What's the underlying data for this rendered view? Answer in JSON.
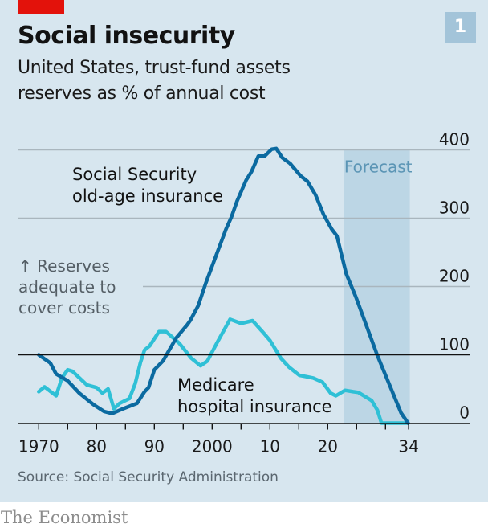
{
  "header": {
    "title": "Social insecurity",
    "subtitle_line1": "United States, trust-fund assets",
    "subtitle_line2": "reserves as % of annual cost",
    "chart_number": "1"
  },
  "footer": {
    "source": "Source: Social Security Administration",
    "brand": "The Economist"
  },
  "colors": {
    "background": "#d7e6ef",
    "social_security": "#0b6aa0",
    "medicare": "#2fc0d6",
    "forecast_band": "#bcd6e5",
    "accent_red": "#e3120b",
    "gridline": "#a9b6be"
  },
  "chart_data": {
    "type": "line",
    "title": "Social insecurity",
    "subtitle": "United States, trust-fund assets reserves as % of annual cost",
    "xlabel": "",
    "ylabel": "",
    "xlim": [
      1970,
      2034
    ],
    "ylim": [
      0,
      400
    ],
    "y_ticks": [
      0,
      100,
      200,
      300,
      400
    ],
    "y_tick_labels": [
      "0",
      "100",
      "200",
      "300",
      "400"
    ],
    "x_ticks": [
      1970,
      1975,
      1980,
      1985,
      1990,
      1995,
      2000,
      2005,
      2010,
      2015,
      2020,
      2025,
      2030,
      2034
    ],
    "x_tick_labels": [
      {
        "year": 1970,
        "label": "1970"
      },
      {
        "year": 1980,
        "label": "80"
      },
      {
        "year": 1990,
        "label": "90"
      },
      {
        "year": 2000,
        "label": "2000"
      },
      {
        "year": 2010,
        "label": "10"
      },
      {
        "year": 2020,
        "label": "20"
      },
      {
        "year": 2034,
        "label": "34"
      }
    ],
    "grid": true,
    "reference_line": {
      "value": 100,
      "note": "Reserves adequate to cover costs"
    },
    "forecast": {
      "from": 2023,
      "to": 2034,
      "label": "Forecast"
    },
    "annotations": [
      {
        "text_lines": [
          "Social Security",
          "old-age insurance"
        ],
        "series": "Social Security old-age insurance"
      },
      {
        "text_lines": [
          "Medicare",
          "hospital insurance"
        ],
        "series": "Medicare hospital insurance"
      },
      {
        "text_lines": [
          "↑ Reserves",
          "adequate to",
          "cover costs"
        ],
        "series": null
      }
    ],
    "series": [
      {
        "name": "Social Security old-age insurance",
        "color": "#0b6aa0",
        "x": [
          1970,
          1972,
          1973,
          1975,
          1977,
          1979.5,
          1981.3,
          1982.7,
          1984.6,
          1987,
          1988.3,
          1989,
          1990,
          1991.5,
          1993.8,
          1995.7,
          1996.2,
          1997.6,
          1998.9,
          2000.8,
          2002.4,
          2003.3,
          2004.3,
          2005.9,
          2006.8,
          2008,
          2009.1,
          2010.3,
          2011.1,
          2012.1,
          2013.5,
          2015.3,
          2016.5,
          2017.9,
          2019.3,
          2020.7,
          2021.6,
          2023.2,
          2024.9,
          2028.6,
          2032.7,
          2033.9
        ],
        "values": [
          100,
          88,
          72,
          62,
          44,
          27,
          17,
          14,
          21,
          29,
          46,
          52,
          78,
          91,
          125,
          144,
          150,
          172,
          205,
          248,
          284,
          301,
          325,
          356,
          368,
          391,
          391,
          401,
          402,
          389,
          380,
          362,
          354,
          334,
          305,
          284,
          274,
          219,
          184,
          99,
          15,
          0
        ]
      },
      {
        "name": "Medicare hospital insurance",
        "color": "#2fc0d6",
        "x": [
          1970,
          1971,
          1973,
          1974,
          1975,
          1975.8,
          1978.3,
          1980,
          1981,
          1982,
          1983,
          1984,
          1985.7,
          1986.7,
          1987.6,
          1988.3,
          1989.2,
          1990.8,
          1992,
          1994.3,
          1996.4,
          1998,
          1999.2,
          2000.8,
          2003.1,
          2005,
          2007,
          2008.7,
          2010,
          2011.9,
          2013.3,
          2015.1,
          2017.5,
          2019.1,
          2020.5,
          2021.4,
          2023,
          2024.4,
          2025.3,
          2027.6,
          2028.6,
          2029.3,
          2033.9
        ],
        "values": [
          46,
          53,
          40,
          66,
          78,
          76,
          56,
          52,
          44,
          50,
          21,
          29,
          36,
          58,
          89,
          107,
          113,
          134,
          134,
          117,
          95,
          84,
          91,
          117,
          152,
          146,
          150,
          134,
          121,
          95,
          82,
          70,
          66,
          60,
          44,
          40,
          48,
          46,
          45,
          33,
          19,
          0,
          0
        ]
      }
    ]
  }
}
